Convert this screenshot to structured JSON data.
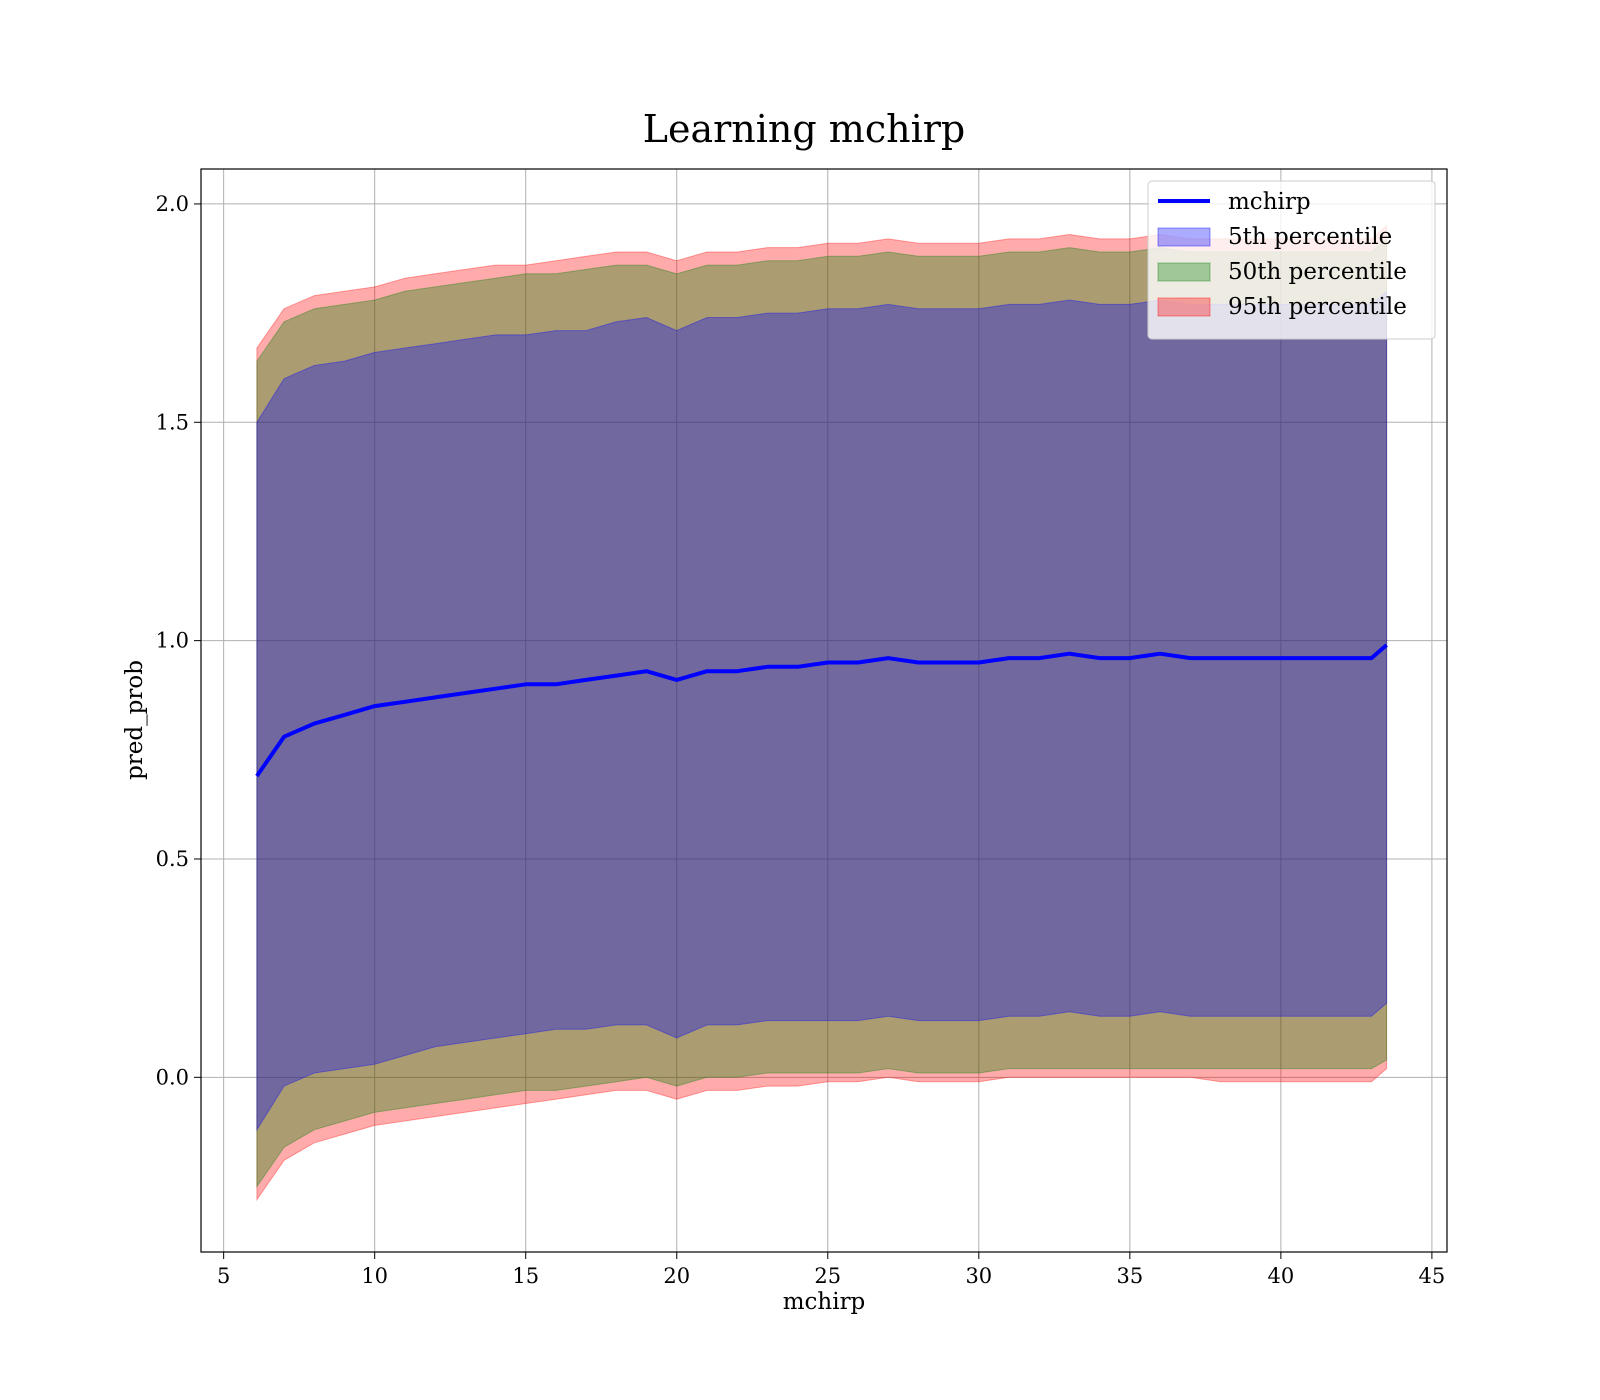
{
  "chart_data": {
    "type": "area",
    "title": "Learning mchirp",
    "xlabel": "mchirp",
    "ylabel": "pred_prob",
    "xlim": [
      4.25,
      45.5
    ],
    "ylim": [
      -0.4,
      2.08
    ],
    "xticks": [
      5,
      10,
      15,
      20,
      25,
      30,
      35,
      40,
      45
    ],
    "xtick_labels": [
      "5",
      "10",
      "15",
      "20",
      "25",
      "30",
      "35",
      "40",
      "45"
    ],
    "yticks": [
      0.0,
      0.5,
      1.0,
      1.5,
      2.0
    ],
    "ytick_labels": [
      "0.0",
      "0.5",
      "1.0",
      "1.5",
      "2.0"
    ],
    "grid": true,
    "legend_position": "top-right",
    "x": [
      6.1,
      7,
      8,
      9,
      10,
      11,
      12,
      13,
      14,
      15,
      16,
      17,
      18,
      19,
      20,
      21,
      22,
      23,
      24,
      25,
      26,
      27,
      28,
      29,
      30,
      31,
      32,
      33,
      34,
      35,
      36,
      37,
      38,
      39,
      40,
      41,
      42,
      43,
      43.5
    ],
    "series": [
      {
        "name": "mchirp",
        "kind": "line",
        "color": "#0000ff",
        "values": [
          0.69,
          0.78,
          0.81,
          0.83,
          0.85,
          0.86,
          0.87,
          0.88,
          0.89,
          0.9,
          0.9,
          0.91,
          0.92,
          0.93,
          0.91,
          0.93,
          0.93,
          0.94,
          0.94,
          0.95,
          0.95,
          0.96,
          0.95,
          0.95,
          0.95,
          0.96,
          0.96,
          0.97,
          0.96,
          0.96,
          0.97,
          0.96,
          0.96,
          0.96,
          0.96,
          0.96,
          0.96,
          0.96,
          0.99
        ]
      },
      {
        "name": "5th percentile",
        "kind": "band",
        "color": "#0000ff",
        "lower": [
          -0.12,
          -0.02,
          0.01,
          0.02,
          0.03,
          0.05,
          0.07,
          0.08,
          0.09,
          0.1,
          0.11,
          0.11,
          0.12,
          0.12,
          0.09,
          0.12,
          0.12,
          0.13,
          0.13,
          0.13,
          0.13,
          0.14,
          0.13,
          0.13,
          0.13,
          0.14,
          0.14,
          0.15,
          0.14,
          0.14,
          0.15,
          0.14,
          0.14,
          0.14,
          0.14,
          0.14,
          0.14,
          0.14,
          0.17
        ],
        "upper": [
          1.5,
          1.6,
          1.63,
          1.64,
          1.66,
          1.67,
          1.68,
          1.69,
          1.7,
          1.7,
          1.71,
          1.71,
          1.73,
          1.74,
          1.71,
          1.74,
          1.74,
          1.75,
          1.75,
          1.76,
          1.76,
          1.77,
          1.76,
          1.76,
          1.76,
          1.77,
          1.77,
          1.78,
          1.77,
          1.77,
          1.78,
          1.77,
          1.77,
          1.77,
          1.77,
          1.77,
          1.77,
          1.77,
          1.8
        ]
      },
      {
        "name": "50th percentile",
        "kind": "band",
        "color": "#008000",
        "lower": [
          -0.25,
          -0.16,
          -0.12,
          -0.1,
          -0.08,
          -0.07,
          -0.06,
          -0.05,
          -0.04,
          -0.03,
          -0.03,
          -0.02,
          -0.01,
          0.0,
          -0.02,
          0.0,
          0.0,
          0.01,
          0.01,
          0.01,
          0.01,
          0.02,
          0.01,
          0.01,
          0.01,
          0.02,
          0.02,
          0.02,
          0.02,
          0.02,
          0.02,
          0.02,
          0.02,
          0.02,
          0.02,
          0.02,
          0.02,
          0.02,
          0.04
        ],
        "upper": [
          1.64,
          1.73,
          1.76,
          1.77,
          1.78,
          1.8,
          1.81,
          1.82,
          1.83,
          1.84,
          1.84,
          1.85,
          1.86,
          1.86,
          1.84,
          1.86,
          1.86,
          1.87,
          1.87,
          1.88,
          1.88,
          1.89,
          1.88,
          1.88,
          1.88,
          1.89,
          1.89,
          1.9,
          1.89,
          1.89,
          1.9,
          1.89,
          1.89,
          1.89,
          1.89,
          1.89,
          1.89,
          1.89,
          1.92
        ]
      },
      {
        "name": "95th percentile",
        "kind": "band",
        "color": "#ff0000",
        "lower": [
          -0.28,
          -0.19,
          -0.15,
          -0.13,
          -0.11,
          -0.1,
          -0.09,
          -0.08,
          -0.07,
          -0.06,
          -0.05,
          -0.04,
          -0.03,
          -0.03,
          -0.05,
          -0.03,
          -0.03,
          -0.02,
          -0.02,
          -0.01,
          -0.01,
          0.0,
          -0.01,
          -0.01,
          -0.01,
          0.0,
          0.0,
          0.0,
          0.0,
          0.0,
          0.0,
          0.0,
          -0.01,
          -0.01,
          -0.01,
          -0.01,
          -0.01,
          -0.01,
          0.02
        ],
        "upper": [
          1.67,
          1.76,
          1.79,
          1.8,
          1.81,
          1.83,
          1.84,
          1.85,
          1.86,
          1.86,
          1.87,
          1.88,
          1.89,
          1.89,
          1.87,
          1.89,
          1.89,
          1.9,
          1.9,
          1.91,
          1.91,
          1.92,
          1.91,
          1.91,
          1.91,
          1.92,
          1.92,
          1.93,
          1.92,
          1.92,
          1.93,
          1.92,
          1.92,
          1.92,
          1.92,
          1.92,
          1.92,
          1.92,
          1.95
        ]
      }
    ]
  }
}
